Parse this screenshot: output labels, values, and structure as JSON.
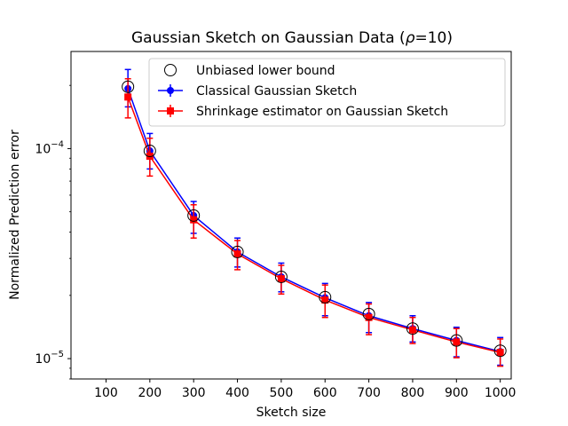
{
  "chart_data": {
    "type": "line",
    "title": "Gaussian Sketch on Gaussian Data (",
    "title_rho": "ρ",
    "title_rest": "=10)",
    "xlabel": "Sketch size",
    "ylabel": "Normalized Prediction error",
    "yscale": "log",
    "xlim": [
      20,
      1025
    ],
    "ylim": [
      8e-06,
      0.00029
    ],
    "x_ticks": [
      100,
      200,
      300,
      400,
      500,
      600,
      700,
      800,
      900,
      1000
    ],
    "x_tick_labels": [
      "100",
      "200",
      "300",
      "400",
      "500",
      "600",
      "700",
      "800",
      "900",
      "1000"
    ],
    "y_ticks": [
      0.0001,
      1e-05
    ],
    "y_tick_labels": [
      {
        "base": "10",
        "exp": "−4"
      },
      {
        "base": "10",
        "exp": "−5"
      }
    ],
    "legend_position": "top-right",
    "x": [
      150,
      200,
      300,
      400,
      500,
      600,
      700,
      800,
      900,
      1000
    ],
    "series": [
      {
        "name": "Unbiased lower bound",
        "color": "#000000",
        "marker": "open-circle",
        "values": [
          0.000197,
          9.75e-05,
          4.8e-05,
          3.22e-05,
          2.45e-05,
          1.96e-05,
          1.63e-05,
          1.39e-05,
          1.22e-05,
          1.09e-05
        ]
      },
      {
        "name": "Classical Gaussian Sketch",
        "color": "#0000ff",
        "marker": "circle",
        "values": [
          0.000193,
          9.75e-05,
          4.8e-05,
          3.22e-05,
          2.45e-05,
          1.95e-05,
          1.6e-05,
          1.39e-05,
          1.22e-05,
          1.08e-05
        ],
        "err_low": [
          0.000158,
          8e-05,
          3.95e-05,
          2.73e-05,
          2.08e-05,
          1.6e-05,
          1.33e-05,
          1.2e-05,
          1.02e-05,
          9.3e-06
        ],
        "err_high": [
          0.000238,
          0.000118,
          5.6e-05,
          3.75e-05,
          2.85e-05,
          2.28e-05,
          1.85e-05,
          1.6e-05,
          1.41e-05,
          1.26e-05
        ]
      },
      {
        "name": "Shrinkage estimator on Gaussian Sketch",
        "color": "#ff0000",
        "marker": "square",
        "values": [
          0.000176,
          9.2e-05,
          4.58e-05,
          3.15e-05,
          2.4e-05,
          1.9e-05,
          1.57e-05,
          1.37e-05,
          1.2e-05,
          1.07e-05
        ],
        "err_low": [
          0.00014,
          7.4e-05,
          3.75e-05,
          2.65e-05,
          2.03e-05,
          1.57e-05,
          1.3e-05,
          1.18e-05,
          1.01e-05,
          9.2e-06
        ],
        "err_high": [
          0.000215,
          0.000112,
          5.4e-05,
          3.65e-05,
          2.78e-05,
          2.24e-05,
          1.82e-05,
          1.57e-05,
          1.39e-05,
          1.24e-05
        ]
      }
    ]
  }
}
